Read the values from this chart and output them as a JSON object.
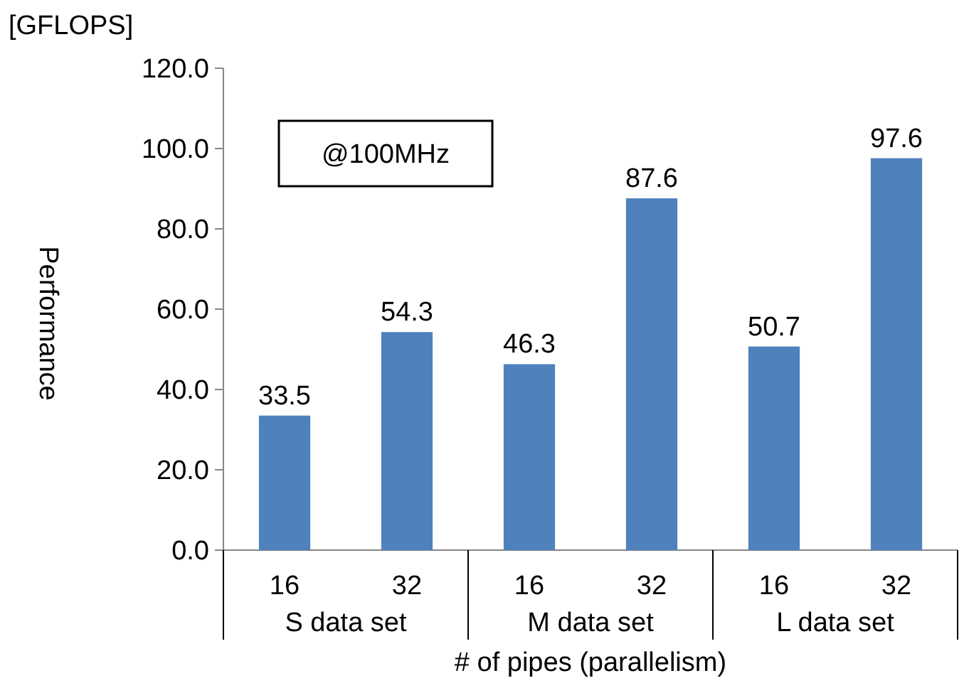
{
  "chart_data": {
    "type": "bar",
    "ylabel": "Performance",
    "xlabel": "# of pipes (parallelism)",
    "categories": [
      "16",
      "32",
      "16",
      "32",
      "16",
      "32"
    ],
    "values": [
      33.5,
      54.3,
      46.3,
      87.6,
      50.7,
      97.6
    ],
    "color": "#4f81bd",
    "ylim": [
      0,
      120
    ],
    "yticks": [
      {
        "value": 0,
        "label": "0.0"
      },
      {
        "value": 20,
        "label": "20.0"
      },
      {
        "value": 40,
        "label": "40.0"
      },
      {
        "value": 60,
        "label": "60.0"
      },
      {
        "value": 80,
        "label": "80.0"
      },
      {
        "value": 100,
        "label": "100.0"
      },
      {
        "value": 120,
        "label": "120.0"
      }
    ],
    "grid": false,
    "data_labels": true,
    "annotations": [
      "[GFLOPS]",
      "@100MHz",
      "S data set",
      "M data set",
      "L data set"
    ]
  }
}
